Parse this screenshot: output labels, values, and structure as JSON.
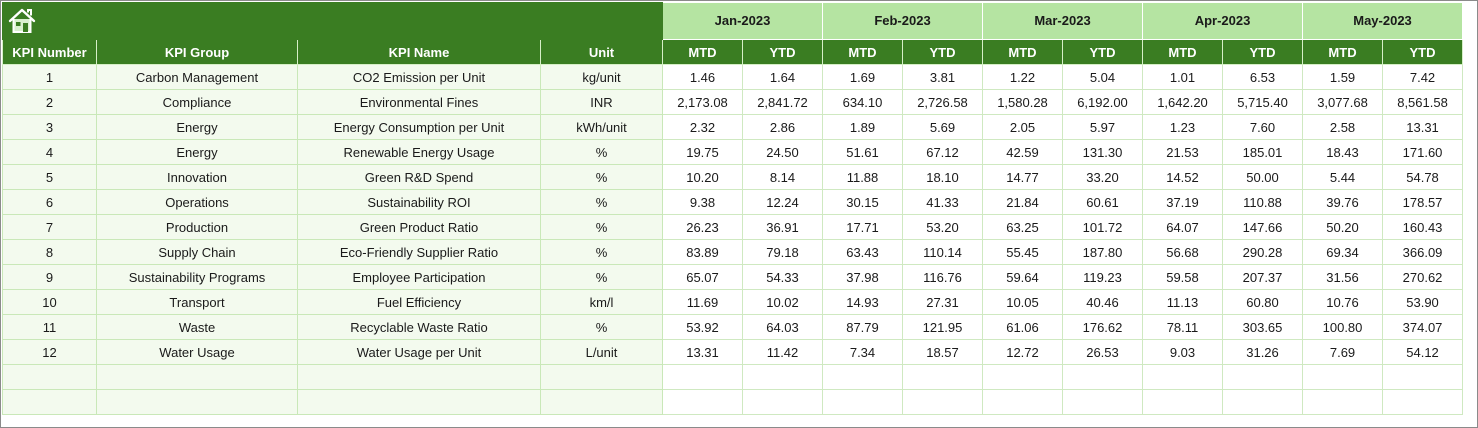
{
  "header": {
    "months": [
      "Jan-2023",
      "Feb-2023",
      "Mar-2023",
      "Apr-2023",
      "May-2023"
    ],
    "columns": {
      "kpi_number": "KPI Number",
      "kpi_group": "KPI Group",
      "kpi_name": "KPI Name",
      "unit": "Unit",
      "mtd": "MTD",
      "ytd": "YTD"
    }
  },
  "icons": {
    "home": "home-icon"
  },
  "colors": {
    "header_green": "#3a7d22",
    "month_band": "#b5e4a2",
    "info_fill": "#f3faee"
  },
  "rows": [
    {
      "num": "1",
      "group": "Carbon Management",
      "name": "CO2 Emission per Unit",
      "unit": "kg/unit",
      "values": [
        "1.46",
        "1.64",
        "1.69",
        "3.81",
        "1.22",
        "5.04",
        "1.01",
        "6.53",
        "1.59",
        "7.42"
      ]
    },
    {
      "num": "2",
      "group": "Compliance",
      "name": "Environmental Fines",
      "unit": "INR",
      "values": [
        "2,173.08",
        "2,841.72",
        "634.10",
        "2,726.58",
        "1,580.28",
        "6,192.00",
        "1,642.20",
        "5,715.40",
        "3,077.68",
        "8,561.58"
      ]
    },
    {
      "num": "3",
      "group": "Energy",
      "name": "Energy Consumption per Unit",
      "unit": "kWh/unit",
      "values": [
        "2.32",
        "2.86",
        "1.89",
        "5.69",
        "2.05",
        "5.97",
        "1.23",
        "7.60",
        "2.58",
        "13.31"
      ]
    },
    {
      "num": "4",
      "group": "Energy",
      "name": "Renewable Energy Usage",
      "unit": "%",
      "values": [
        "19.75",
        "24.50",
        "51.61",
        "67.12",
        "42.59",
        "131.30",
        "21.53",
        "185.01",
        "18.43",
        "171.60"
      ]
    },
    {
      "num": "5",
      "group": "Innovation",
      "name": "Green R&D Spend",
      "unit": "%",
      "values": [
        "10.20",
        "8.14",
        "11.88",
        "18.10",
        "14.77",
        "33.20",
        "14.52",
        "50.00",
        "5.44",
        "54.78"
      ]
    },
    {
      "num": "6",
      "group": "Operations",
      "name": "Sustainability ROI",
      "unit": "%",
      "values": [
        "9.38",
        "12.24",
        "30.15",
        "41.33",
        "21.84",
        "60.61",
        "37.19",
        "110.88",
        "39.76",
        "178.57"
      ]
    },
    {
      "num": "7",
      "group": "Production",
      "name": "Green Product Ratio",
      "unit": "%",
      "values": [
        "26.23",
        "36.91",
        "17.71",
        "53.20",
        "63.25",
        "101.72",
        "64.07",
        "147.66",
        "50.20",
        "160.43"
      ]
    },
    {
      "num": "8",
      "group": "Supply Chain",
      "name": "Eco-Friendly Supplier Ratio",
      "unit": "%",
      "values": [
        "83.89",
        "79.18",
        "63.43",
        "110.14",
        "55.45",
        "187.80",
        "56.68",
        "290.28",
        "69.34",
        "366.09"
      ]
    },
    {
      "num": "9",
      "group": "Sustainability Programs",
      "name": "Employee Participation",
      "unit": "%",
      "values": [
        "65.07",
        "54.33",
        "37.98",
        "116.76",
        "59.64",
        "119.23",
        "59.58",
        "207.37",
        "31.56",
        "270.62"
      ]
    },
    {
      "num": "10",
      "group": "Transport",
      "name": "Fuel Efficiency",
      "unit": "km/l",
      "values": [
        "11.69",
        "10.02",
        "14.93",
        "27.31",
        "10.05",
        "40.46",
        "11.13",
        "60.80",
        "10.76",
        "53.90"
      ]
    },
    {
      "num": "11",
      "group": "Waste",
      "name": "Recyclable Waste Ratio",
      "unit": "%",
      "values": [
        "53.92",
        "64.03",
        "87.79",
        "121.95",
        "61.06",
        "176.62",
        "78.11",
        "303.65",
        "100.80",
        "374.07"
      ]
    },
    {
      "num": "12",
      "group": "Water Usage",
      "name": "Water Usage per Unit",
      "unit": "L/unit",
      "values": [
        "13.31",
        "11.42",
        "7.34",
        "18.57",
        "12.72",
        "26.53",
        "9.03",
        "31.26",
        "7.69",
        "54.12"
      ]
    }
  ],
  "empty_rows": 2
}
